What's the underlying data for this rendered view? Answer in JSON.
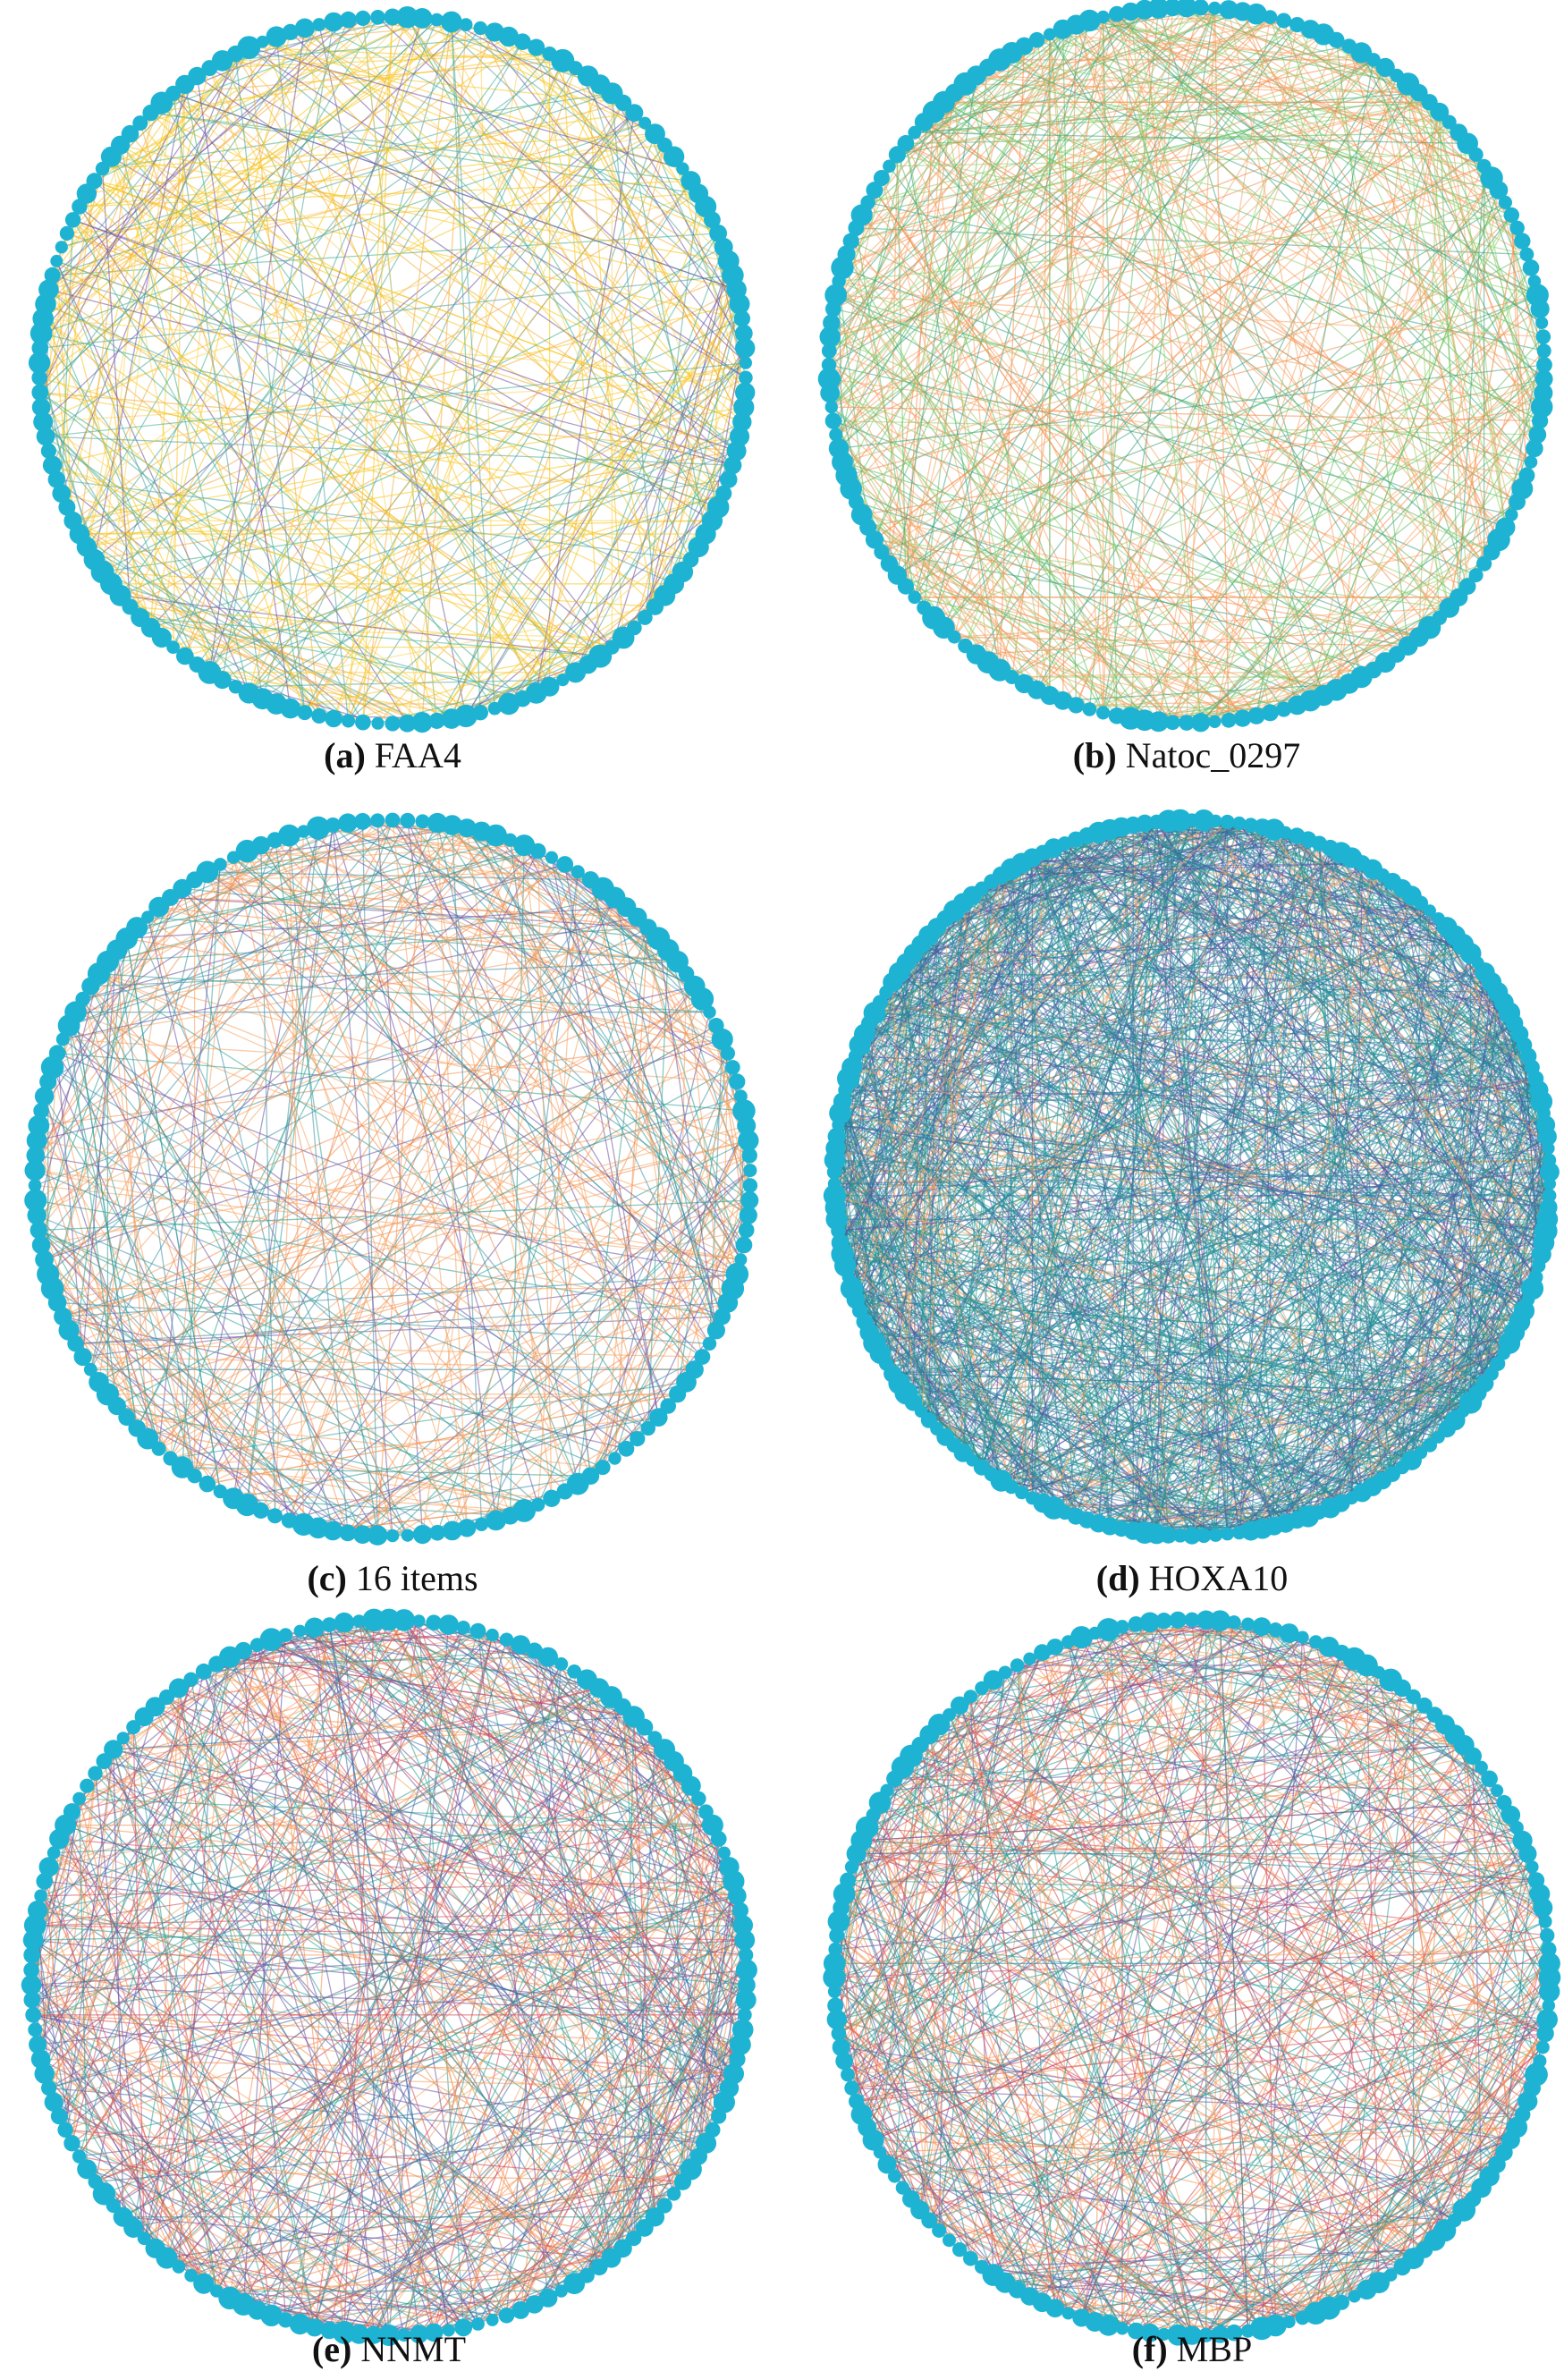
{
  "figure": {
    "panels": [
      {
        "tag": "(a)",
        "label": "FAA4"
      },
      {
        "tag": "(b)",
        "label": "Natoc_0297"
      },
      {
        "tag": "(c)",
        "label": "16 items"
      },
      {
        "tag": "(d)",
        "label": "HOXA10"
      },
      {
        "tag": "(e)",
        "label": "NNMT"
      },
      {
        "tag": "(f)",
        "label": "MBP"
      }
    ]
  }
}
